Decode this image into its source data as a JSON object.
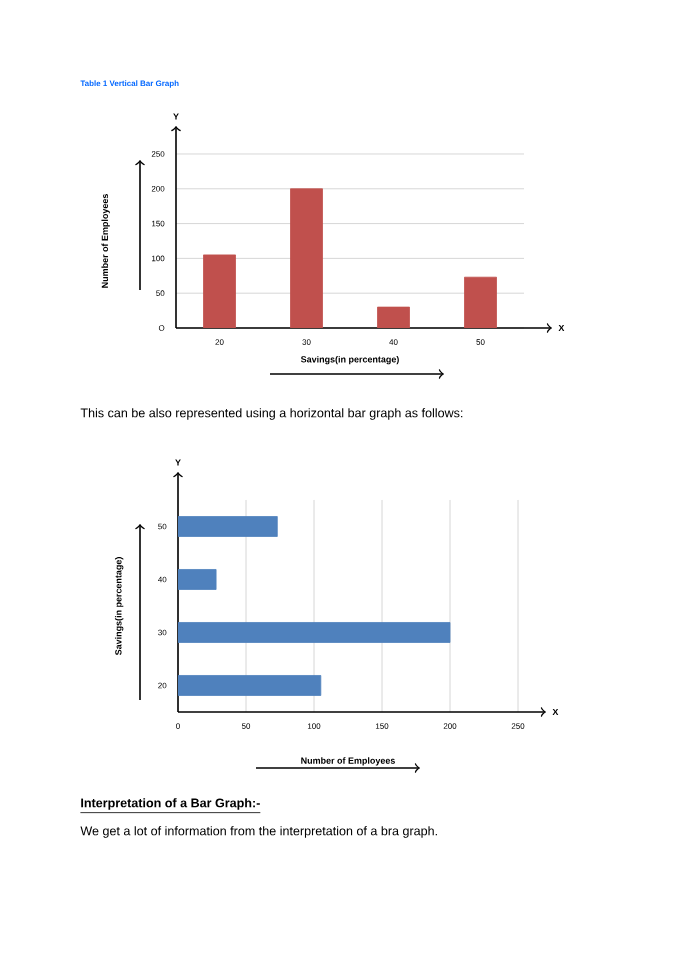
{
  "chart_data": [
    {
      "type": "bar",
      "title": "Table 1 Vertical Bar Graph",
      "xlabel": "Savings(in percentage)",
      "ylabel": "Number of Employees",
      "categories": [
        "20",
        "30",
        "40",
        "50"
      ],
      "values": [
        105,
        200,
        30,
        73
      ],
      "color": "#c0504d",
      "ylim": [
        0,
        250
      ],
      "yticks": [
        {
          "value": 0,
          "label": "O"
        },
        50,
        100,
        150,
        200,
        250
      ],
      "grid": "y",
      "annotations": [
        "Y",
        "X",
        "This can be also represented using a horizontal bar graph as follows:"
      ]
    },
    {
      "type": "bar",
      "orientation": "horizontal",
      "xlabel": "Number of Employees",
      "ylabel": "Savings(in percentage)",
      "categories": [
        "50",
        "40",
        "30",
        "20"
      ],
      "values": [
        73,
        28,
        200,
        105
      ],
      "color": "#4f81bd",
      "xlim": [
        0,
        250
      ],
      "xticks": [
        0,
        50,
        100,
        150,
        200,
        250
      ],
      "grid": "x",
      "annotations": [
        "Y",
        "X",
        "Interpretation of a Bar Graph:-",
        "We get a lot of information from the interpretation of a bra graph."
      ]
    }
  ]
}
